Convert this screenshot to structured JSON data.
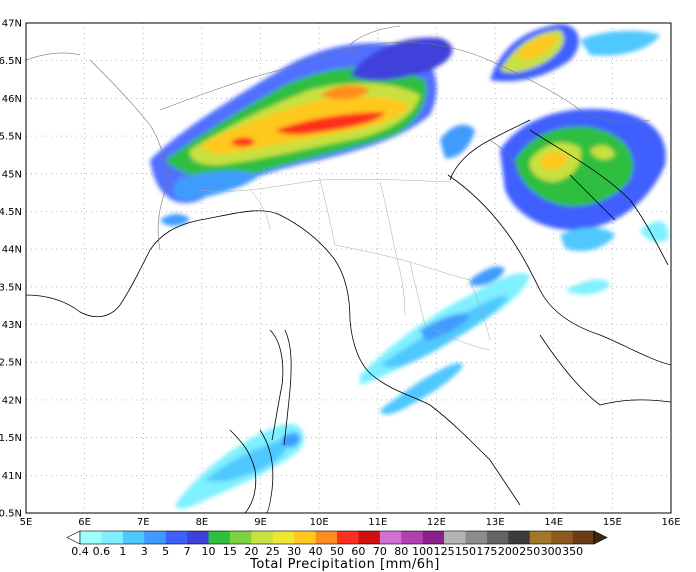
{
  "map": {
    "lat_labels": [
      "47N",
      "6.5N",
      "46N",
      "5.5N",
      "45N",
      "4.5N",
      "44N",
      "3.5N",
      "43N",
      "2.5N",
      "42N",
      "1.5N",
      "41N",
      "0.5N"
    ],
    "lon_labels": [
      "5E",
      "6E",
      "7E",
      "8E",
      "9E",
      "10E",
      "11E",
      "12E",
      "13E",
      "14E",
      "15E",
      "16E"
    ],
    "lat_range": [
      40.5,
      47
    ],
    "lon_range": [
      5,
      16
    ],
    "grid": "dotted"
  },
  "legend": {
    "title": "Total Precipitation [mm/6h]",
    "levels": [
      "0.4",
      "0.6",
      "1",
      "3",
      "5",
      "7",
      "10",
      "15",
      "20",
      "25",
      "30",
      "40",
      "50",
      "60",
      "70",
      "80",
      "100",
      "125",
      "150",
      "175",
      "200",
      "250",
      "300",
      "350"
    ],
    "colors": [
      "#a0fffa",
      "#7ff0ff",
      "#4fc8ff",
      "#3f9bff",
      "#3f5fff",
      "#3f3fdc",
      "#2fbf3f",
      "#7fd23f",
      "#c8e13f",
      "#f0e62f",
      "#ffc81f",
      "#ff8c1f",
      "#ff2f1f",
      "#d20f0f",
      "#d26fd2",
      "#b43fb4",
      "#8c1f8c",
      "#b4b4b4",
      "#8c8c8c",
      "#646464",
      "#3c3c3c",
      "#a07828",
      "#8c5a1e",
      "#6e3c14"
    ]
  }
}
